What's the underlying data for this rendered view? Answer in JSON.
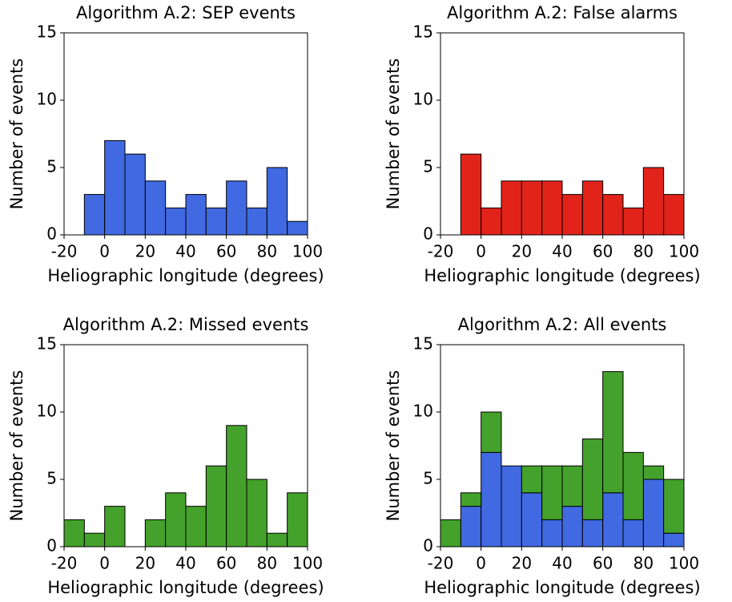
{
  "chart_data": [
    {
      "type": "histogram",
      "title": "Algorithm A.2: SEP events",
      "x_label": "Heliographic longitude (degrees)",
      "y_label": "Number of events",
      "bins": [
        -20,
        -10,
        0,
        10,
        20,
        30,
        40,
        50,
        60,
        70,
        80,
        90,
        100
      ],
      "values": [
        0,
        3,
        7,
        6,
        4,
        2,
        3,
        2,
        4,
        2,
        5,
        1
      ],
      "color": "#4169e1",
      "xlim": [
        -20,
        100
      ],
      "xticks": [
        -20,
        0,
        20,
        40,
        60,
        80,
        100
      ],
      "ylim": [
        0,
        15
      ],
      "yticks": [
        0,
        5,
        10,
        15
      ]
    },
    {
      "type": "histogram",
      "title": "Algorithm A.2: False alarms",
      "x_label": "Heliographic longitude (degrees)",
      "y_label": "Number of events",
      "bins": [
        -20,
        -10,
        0,
        10,
        20,
        30,
        40,
        50,
        60,
        70,
        80,
        90,
        100
      ],
      "values": [
        0,
        6,
        2,
        4,
        4,
        4,
        3,
        4,
        3,
        2,
        5,
        3
      ],
      "color": "#e2231a",
      "xlim": [
        -20,
        100
      ],
      "xticks": [
        -20,
        0,
        20,
        40,
        60,
        80,
        100
      ],
      "ylim": [
        0,
        15
      ],
      "yticks": [
        0,
        5,
        10,
        15
      ]
    },
    {
      "type": "histogram",
      "title": "Algorithm A.2: Missed events",
      "x_label": "Heliographic longitude (degrees)",
      "y_label": "Number of events",
      "bins": [
        -20,
        -10,
        0,
        10,
        20,
        30,
        40,
        50,
        60,
        70,
        80,
        90,
        100
      ],
      "values": [
        2,
        1,
        3,
        0,
        2,
        4,
        3,
        6,
        9,
        5,
        1,
        4
      ],
      "color": "#44a12b",
      "xlim": [
        -20,
        100
      ],
      "xticks": [
        -20,
        0,
        20,
        40,
        60,
        80,
        100
      ],
      "ylim": [
        0,
        15
      ],
      "yticks": [
        0,
        5,
        10,
        15
      ]
    },
    {
      "type": "stacked-histogram",
      "title": "Algorithm A.2: All events",
      "x_label": "Heliographic longitude (degrees)",
      "y_label": "Number of events",
      "bins": [
        -20,
        -10,
        0,
        10,
        20,
        30,
        40,
        50,
        60,
        70,
        80,
        90,
        100
      ],
      "series": [
        {
          "color": "#4169e1",
          "values": [
            0,
            3,
            7,
            6,
            4,
            2,
            3,
            2,
            4,
            2,
            5,
            1
          ]
        },
        {
          "color": "#44a12b",
          "values": [
            2,
            1,
            3,
            0,
            2,
            4,
            3,
            6,
            9,
            5,
            1,
            4
          ]
        }
      ],
      "xlim": [
        -20,
        100
      ],
      "xticks": [
        -20,
        0,
        20,
        40,
        60,
        80,
        100
      ],
      "ylim": [
        0,
        15
      ],
      "yticks": [
        0,
        5,
        10,
        15
      ]
    }
  ]
}
